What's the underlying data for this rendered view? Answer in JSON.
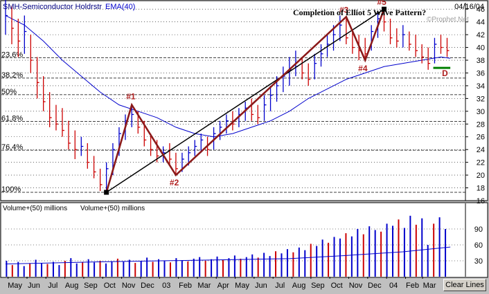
{
  "chart_data": {
    "type": "bar",
    "title": "Completion of Elliot 5 Wave Pattern?",
    "symbol_label": "SMH-Semiconductor Holdrstr",
    "ema_label": "EMA(40)",
    "date_label": "04/16/04",
    "watermark": "©Prophet.Net",
    "ylim": [
      16,
      47
    ],
    "yticks": [
      16,
      18,
      20,
      22,
      24,
      26,
      28,
      30,
      32,
      34,
      36,
      38,
      40,
      42,
      44,
      46
    ],
    "xlim": [
      0,
      24.3
    ],
    "x_ticks": [
      {
        "label": "May",
        "x": 0.5
      },
      {
        "label": "Jun",
        "x": 1.5
      },
      {
        "label": "Jul",
        "x": 2.5
      },
      {
        "label": "Aug",
        "x": 3.5
      },
      {
        "label": "Sep",
        "x": 4.5
      },
      {
        "label": "Oct",
        "x": 5.5
      },
      {
        "label": "Nov",
        "x": 6.5
      },
      {
        "label": "Dec",
        "x": 7.5
      },
      {
        "label": "03",
        "x": 8.5
      },
      {
        "label": "Feb",
        "x": 9.5
      },
      {
        "label": "Mar",
        "x": 10.5
      },
      {
        "label": "Apr",
        "x": 11.5
      },
      {
        "label": "May",
        "x": 12.5
      },
      {
        "label": "Jun",
        "x": 13.5
      },
      {
        "label": "Jul",
        "x": 14.5
      },
      {
        "label": "Aug",
        "x": 15.5
      },
      {
        "label": "Sep",
        "x": 16.5
      },
      {
        "label": "Oct",
        "x": 17.5
      },
      {
        "label": "Nov",
        "x": 18.5
      },
      {
        "label": "Dec",
        "x": 19.5
      },
      {
        "label": "04",
        "x": 20.5
      },
      {
        "label": "Feb",
        "x": 21.5
      },
      {
        "label": "Mar",
        "x": 22.4
      }
    ],
    "fib_levels": [
      {
        "label": "23.6%",
        "y": 38.4
      },
      {
        "label": "38.2%",
        "y": 35.2
      },
      {
        "label": "50%",
        "y": 32.6
      },
      {
        "label": "61.8%",
        "y": 28.4
      },
      {
        "label": "76.4%",
        "y": 23.9
      },
      {
        "label": "100%",
        "y": 17.3
      }
    ],
    "price_bars": [
      {
        "x": 0.0,
        "h": 48.0,
        "l": 42.0,
        "c": 45.0
      },
      {
        "x": 0.33,
        "h": 46.5,
        "l": 40.5,
        "c": 43.0
      },
      {
        "x": 0.67,
        "h": 44.5,
        "l": 38.5,
        "c": 41.0
      },
      {
        "x": 1.0,
        "h": 45.0,
        "l": 39.0,
        "c": 42.5
      },
      {
        "x": 1.33,
        "h": 42.0,
        "l": 36.0,
        "c": 38.0
      },
      {
        "x": 1.67,
        "h": 38.5,
        "l": 32.0,
        "c": 34.5
      },
      {
        "x": 2.0,
        "h": 35.5,
        "l": 30.0,
        "c": 31.5
      },
      {
        "x": 2.33,
        "h": 33.0,
        "l": 27.5,
        "c": 29.0
      },
      {
        "x": 2.67,
        "h": 31.0,
        "l": 27.0,
        "c": 28.0
      },
      {
        "x": 3.0,
        "h": 30.5,
        "l": 26.0,
        "c": 27.0
      },
      {
        "x": 3.33,
        "h": 28.5,
        "l": 24.0,
        "c": 25.0
      },
      {
        "x": 3.67,
        "h": 27.0,
        "l": 22.5,
        "c": 24.0
      },
      {
        "x": 4.0,
        "h": 26.0,
        "l": 23.0,
        "c": 24.5
      },
      {
        "x": 4.33,
        "h": 25.0,
        "l": 21.0,
        "c": 22.0
      },
      {
        "x": 4.67,
        "h": 23.0,
        "l": 19.5,
        "c": 20.5
      },
      {
        "x": 5.0,
        "h": 21.0,
        "l": 17.5,
        "c": 18.5
      },
      {
        "x": 5.33,
        "h": 22.0,
        "l": 17.3,
        "c": 21.0
      },
      {
        "x": 5.67,
        "h": 25.0,
        "l": 20.0,
        "c": 24.0
      },
      {
        "x": 6.0,
        "h": 27.5,
        "l": 23.0,
        "c": 26.5
      },
      {
        "x": 6.33,
        "h": 29.5,
        "l": 25.5,
        "c": 28.5
      },
      {
        "x": 6.67,
        "h": 31.0,
        "l": 27.5,
        "c": 29.5
      },
      {
        "x": 7.0,
        "h": 30.0,
        "l": 26.5,
        "c": 27.5
      },
      {
        "x": 7.33,
        "h": 28.5,
        "l": 24.5,
        "c": 25.5
      },
      {
        "x": 7.67,
        "h": 26.5,
        "l": 23.0,
        "c": 24.0
      },
      {
        "x": 8.0,
        "h": 25.5,
        "l": 22.0,
        "c": 23.0
      },
      {
        "x": 8.33,
        "h": 24.5,
        "l": 22.0,
        "c": 23.5
      },
      {
        "x": 8.67,
        "h": 25.0,
        "l": 21.5,
        "c": 22.5
      },
      {
        "x": 9.0,
        "h": 23.5,
        "l": 20.0,
        "c": 21.0
      },
      {
        "x": 9.33,
        "h": 23.5,
        "l": 20.5,
        "c": 22.5
      },
      {
        "x": 9.67,
        "h": 24.5,
        "l": 21.5,
        "c": 23.5
      },
      {
        "x": 10.0,
        "h": 25.5,
        "l": 23.0,
        "c": 24.5
      },
      {
        "x": 10.33,
        "h": 26.5,
        "l": 23.5,
        "c": 25.5
      },
      {
        "x": 10.67,
        "h": 26.0,
        "l": 23.0,
        "c": 24.0
      },
      {
        "x": 11.0,
        "h": 27.5,
        "l": 24.0,
        "c": 26.5
      },
      {
        "x": 11.33,
        "h": 28.5,
        "l": 25.5,
        "c": 27.5
      },
      {
        "x": 11.67,
        "h": 29.5,
        "l": 26.5,
        "c": 28.5
      },
      {
        "x": 12.0,
        "h": 30.0,
        "l": 27.0,
        "c": 28.0
      },
      {
        "x": 12.33,
        "h": 30.5,
        "l": 27.5,
        "c": 29.5
      },
      {
        "x": 12.67,
        "h": 31.5,
        "l": 28.5,
        "c": 30.5
      },
      {
        "x": 13.0,
        "h": 32.0,
        "l": 28.5,
        "c": 29.5
      },
      {
        "x": 13.33,
        "h": 31.0,
        "l": 28.0,
        "c": 29.0
      },
      {
        "x": 13.67,
        "h": 32.5,
        "l": 28.5,
        "c": 31.0
      },
      {
        "x": 14.0,
        "h": 34.0,
        "l": 30.0,
        "c": 32.5
      },
      {
        "x": 14.33,
        "h": 35.5,
        "l": 31.5,
        "c": 34.0
      },
      {
        "x": 14.67,
        "h": 37.0,
        "l": 33.0,
        "c": 35.5
      },
      {
        "x": 15.0,
        "h": 38.5,
        "l": 34.0,
        "c": 36.5
      },
      {
        "x": 15.33,
        "h": 39.5,
        "l": 35.5,
        "c": 37.0
      },
      {
        "x": 15.67,
        "h": 38.5,
        "l": 35.0,
        "c": 36.0
      },
      {
        "x": 16.0,
        "h": 37.5,
        "l": 34.0,
        "c": 35.0
      },
      {
        "x": 16.33,
        "h": 39.0,
        "l": 35.0,
        "c": 37.5
      },
      {
        "x": 16.67,
        "h": 40.5,
        "l": 37.0,
        "c": 39.0
      },
      {
        "x": 17.0,
        "h": 42.0,
        "l": 38.5,
        "c": 40.5
      },
      {
        "x": 17.33,
        "h": 43.5,
        "l": 39.5,
        "c": 42.0
      },
      {
        "x": 17.67,
        "h": 45.0,
        "l": 41.0,
        "c": 43.5
      },
      {
        "x": 18.0,
        "h": 44.5,
        "l": 40.5,
        "c": 41.5
      },
      {
        "x": 18.33,
        "h": 42.5,
        "l": 39.0,
        "c": 40.0
      },
      {
        "x": 18.67,
        "h": 42.0,
        "l": 38.0,
        "c": 39.5
      },
      {
        "x": 19.0,
        "h": 41.5,
        "l": 38.0,
        "c": 39.0
      },
      {
        "x": 19.33,
        "h": 43.5,
        "l": 39.5,
        "c": 42.5
      },
      {
        "x": 19.67,
        "h": 45.5,
        "l": 41.5,
        "c": 44.5
      },
      {
        "x": 20.0,
        "h": 46.0,
        "l": 42.5,
        "c": 44.0
      },
      {
        "x": 20.33,
        "h": 44.5,
        "l": 40.5,
        "c": 41.5
      },
      {
        "x": 20.67,
        "h": 43.0,
        "l": 40.0,
        "c": 41.0
      },
      {
        "x": 21.0,
        "h": 43.5,
        "l": 40.0,
        "c": 42.0
      },
      {
        "x": 21.33,
        "h": 42.5,
        "l": 39.5,
        "c": 40.5
      },
      {
        "x": 21.67,
        "h": 42.0,
        "l": 38.5,
        "c": 39.5
      },
      {
        "x": 22.0,
        "h": 40.5,
        "l": 37.5,
        "c": 38.5
      },
      {
        "x": 22.33,
        "h": 40.0,
        "l": 36.5,
        "c": 37.5
      },
      {
        "x": 22.67,
        "h": 41.5,
        "l": 37.5,
        "c": 40.5
      },
      {
        "x": 23.0,
        "h": 42.0,
        "l": 39.0,
        "c": 40.0
      },
      {
        "x": 23.33,
        "h": 41.5,
        "l": 38.5,
        "c": 39.5
      }
    ],
    "ema": [
      {
        "x": 0.0,
        "y": 45.0
      },
      {
        "x": 1.0,
        "y": 43.5
      },
      {
        "x": 2.0,
        "y": 41.0
      },
      {
        "x": 3.0,
        "y": 38.0
      },
      {
        "x": 4.0,
        "y": 35.5
      },
      {
        "x": 5.0,
        "y": 33.0
      },
      {
        "x": 6.0,
        "y": 31.0
      },
      {
        "x": 7.0,
        "y": 30.0
      },
      {
        "x": 8.0,
        "y": 29.0
      },
      {
        "x": 9.0,
        "y": 27.5
      },
      {
        "x": 10.0,
        "y": 26.5
      },
      {
        "x": 11.0,
        "y": 26.0
      },
      {
        "x": 12.0,
        "y": 26.5
      },
      {
        "x": 13.0,
        "y": 27.5
      },
      {
        "x": 14.0,
        "y": 28.5
      },
      {
        "x": 15.0,
        "y": 30.0
      },
      {
        "x": 16.0,
        "y": 32.0
      },
      {
        "x": 17.0,
        "y": 33.5
      },
      {
        "x": 18.0,
        "y": 35.0
      },
      {
        "x": 19.0,
        "y": 36.0
      },
      {
        "x": 20.0,
        "y": 37.0
      },
      {
        "x": 21.0,
        "y": 37.5
      },
      {
        "x": 22.0,
        "y": 38.0
      },
      {
        "x": 23.0,
        "y": 38.5
      },
      {
        "x": 23.5,
        "y": 38.3
      }
    ],
    "wave_points": [
      {
        "label": "",
        "x": 5.33,
        "y": 17.3
      },
      {
        "label": "#1",
        "x": 6.67,
        "y": 31.0
      },
      {
        "label": "#2",
        "x": 9.0,
        "y": 20.0
      },
      {
        "label": "#3",
        "x": 18.0,
        "y": 44.8
      },
      {
        "label": "#4",
        "x": 19.0,
        "y": 38.0
      },
      {
        "label": "#5",
        "x": 20.0,
        "y": 46.0
      }
    ],
    "trend_line": {
      "from": {
        "x": 5.33,
        "y": 17.3
      },
      "to": {
        "x": 20.0,
        "y": 46.0
      }
    },
    "support": {
      "label": "D",
      "x1": 22.6,
      "x2": 23.5,
      "y": 36.8
    },
    "volume": {
      "label_1": "Volume+(50) millions",
      "label_2": "Volume+(50) millions",
      "ylim": [
        0,
        120
      ],
      "yticks": [
        30,
        60,
        90
      ],
      "values": [
        30,
        22,
        28,
        20,
        25,
        32,
        26,
        24,
        28,
        22,
        30,
        35,
        25,
        28,
        33,
        27,
        30,
        25,
        29,
        34,
        28,
        32,
        26,
        30,
        36,
        28,
        33,
        30,
        27,
        35,
        31,
        29,
        34,
        37,
        30,
        33,
        38,
        32,
        35,
        40,
        34,
        37,
        42,
        36,
        45,
        39,
        48,
        44,
        52,
        46,
        55,
        50,
        62,
        58,
        70,
        64,
        75,
        72,
        82,
        76,
        90,
        80,
        95,
        88,
        85,
        100,
        96,
        108,
        92,
        115,
        98,
        110,
        60,
        100,
        112,
        90
      ],
      "ma": [
        {
          "x": 0,
          "y": 24
        },
        {
          "x": 5,
          "y": 28
        },
        {
          "x": 10,
          "y": 31
        },
        {
          "x": 15,
          "y": 34
        },
        {
          "x": 18,
          "y": 40
        },
        {
          "x": 21,
          "y": 47
        },
        {
          "x": 23.5,
          "y": 56
        }
      ]
    },
    "colors": {
      "up": "#0000cc",
      "down": "#cc0000",
      "ema": "#0000cc",
      "wave": "#8b1a1a",
      "trend": "#000000",
      "support": "#008000",
      "grid": "#000000"
    }
  },
  "toolbar": {
    "clear_lines": "Clear Lines"
  }
}
